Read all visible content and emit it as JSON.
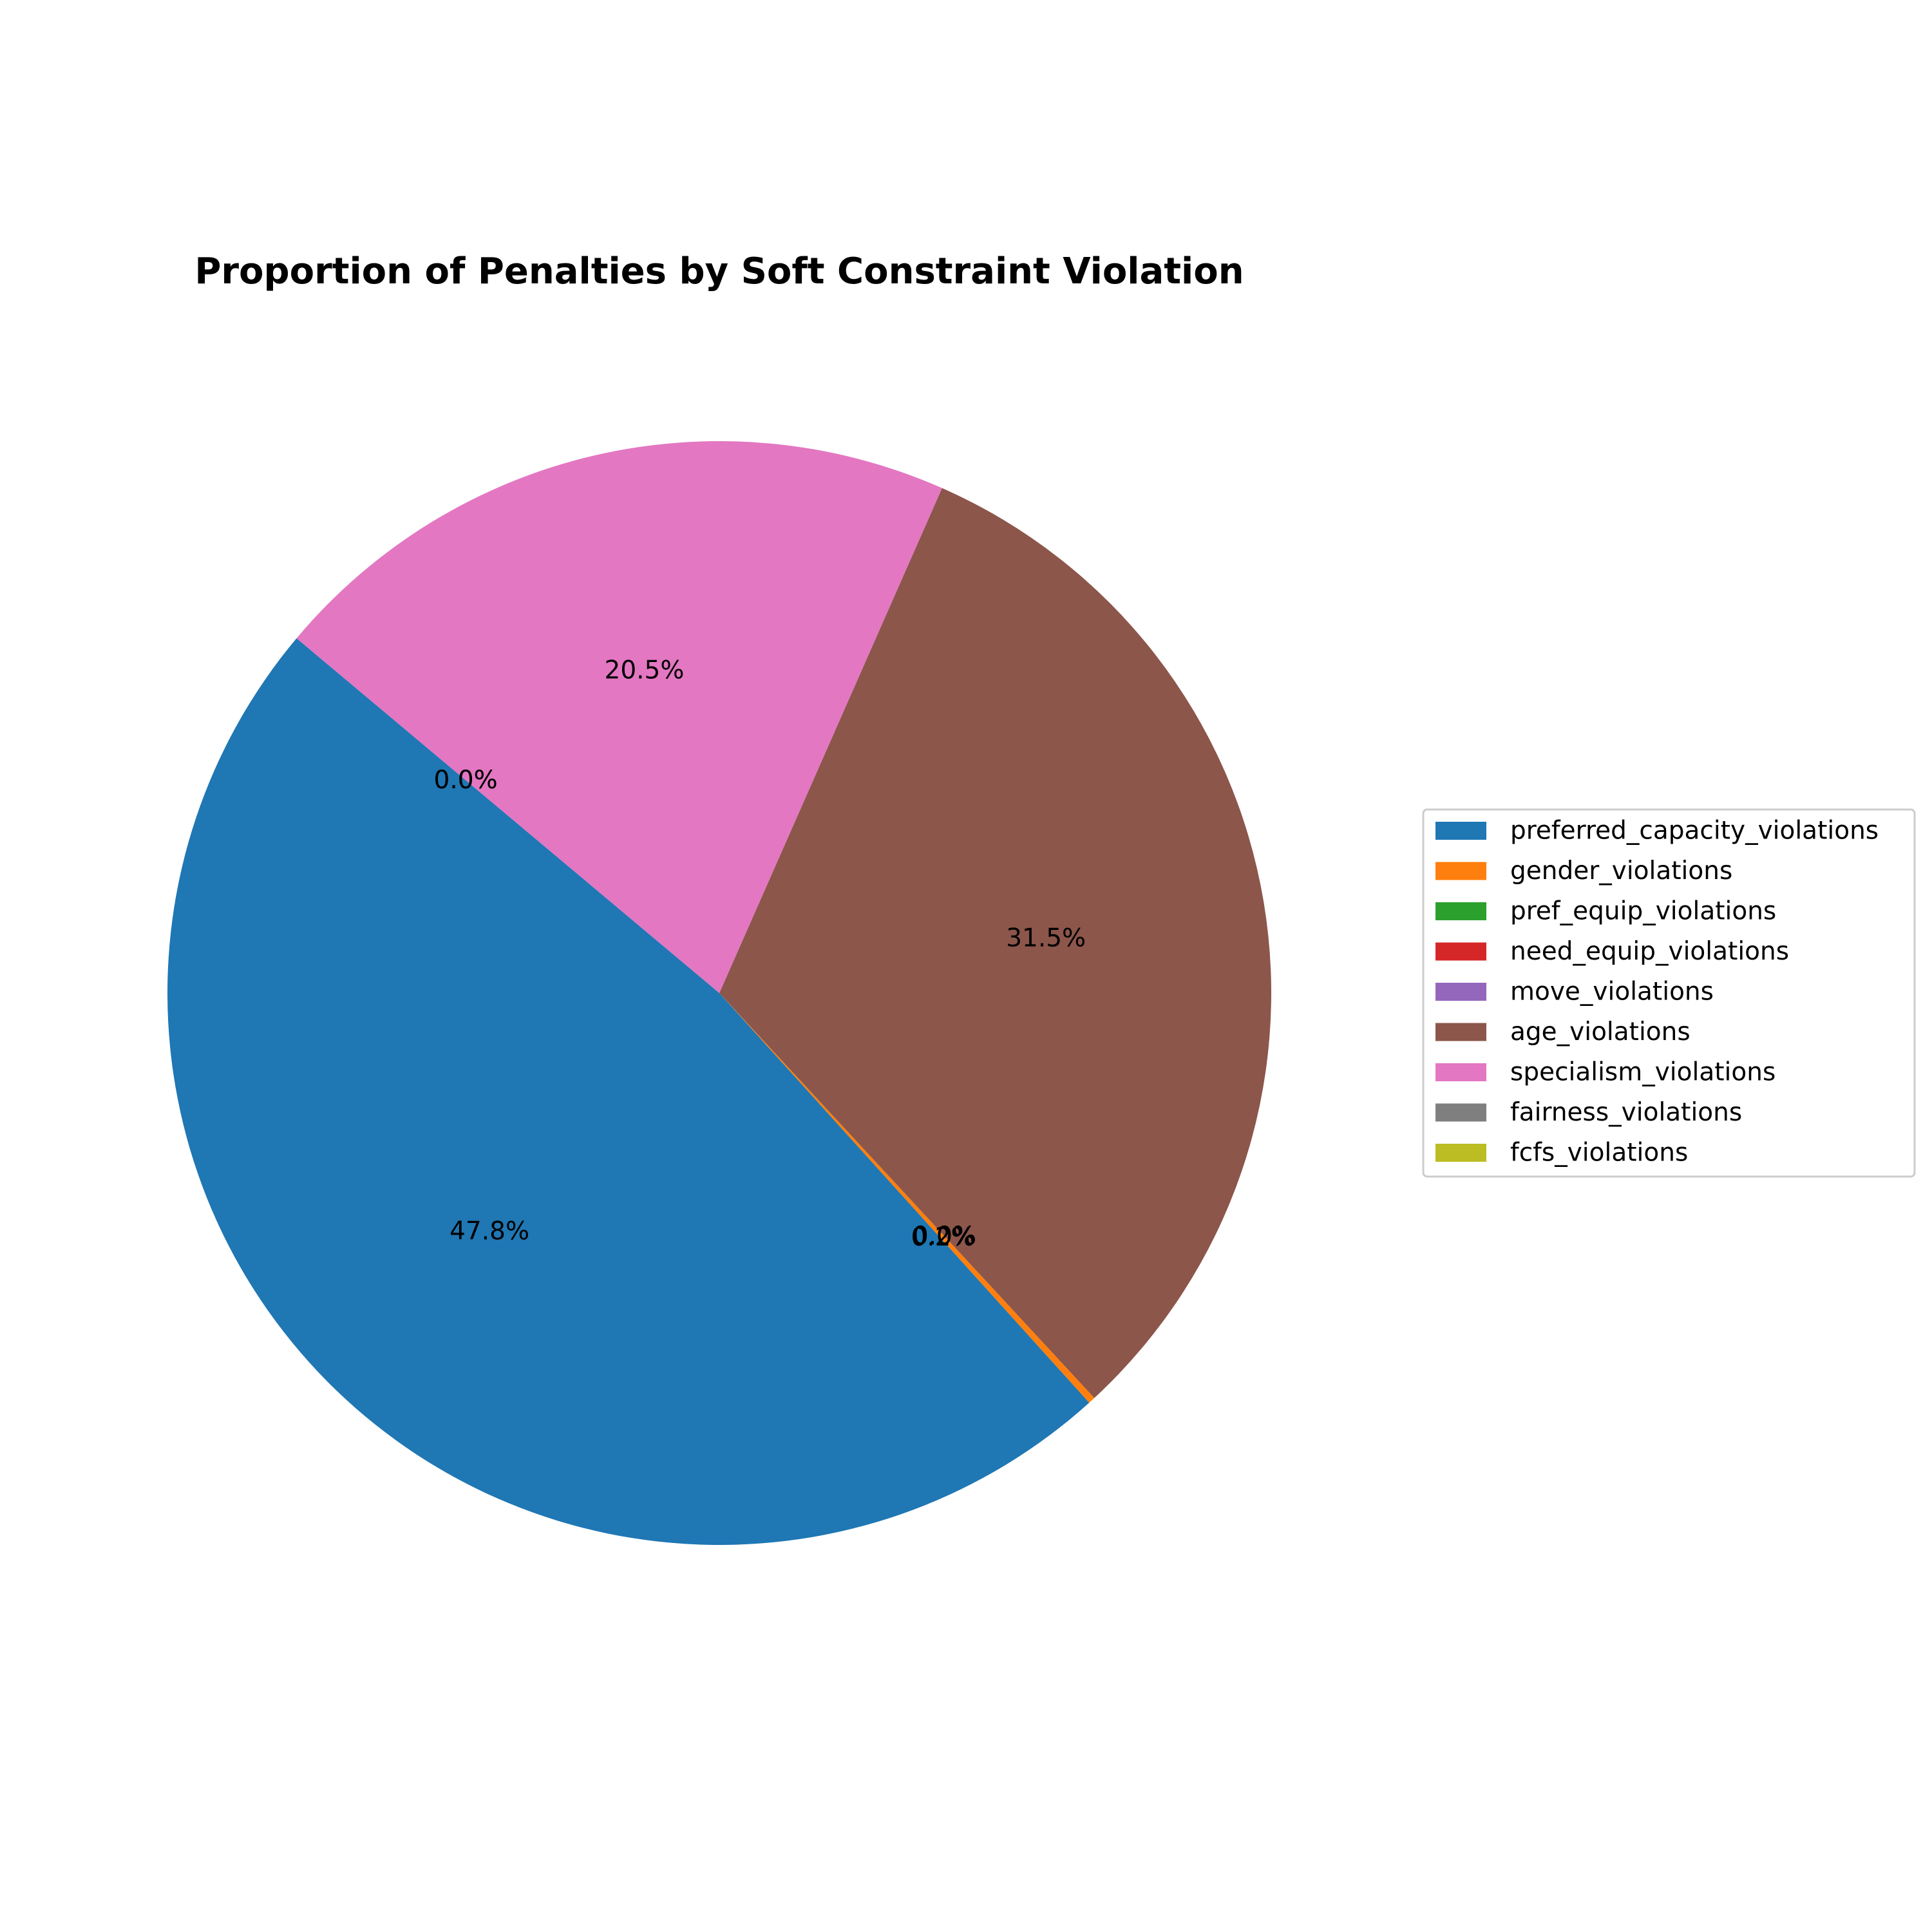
{
  "chart_data": {
    "type": "pie",
    "title": "Proportion of Penalties by Soft Constraint Violation",
    "start_angle_deg": 140,
    "direction": "counterclockwise",
    "slices": [
      {
        "label": "preferred_capacity_violations",
        "value": 47.8,
        "pct_label": "47.8%",
        "color": "#1f77b4"
      },
      {
        "label": "gender_violations",
        "value": 0.2,
        "pct_label": "0.2%",
        "color": "#ff7f0e"
      },
      {
        "label": "pref_equip_violations",
        "value": 0.0,
        "pct_label": "0.0%",
        "color": "#2ca02c"
      },
      {
        "label": "need_equip_violations",
        "value": 0.0,
        "pct_label": "0.0%",
        "color": "#d62728"
      },
      {
        "label": "move_violations",
        "value": 0.0,
        "pct_label": "0.0%",
        "color": "#9467bd"
      },
      {
        "label": "age_violations",
        "value": 31.5,
        "pct_label": "31.5%",
        "color": "#8c564b"
      },
      {
        "label": "specialism_violations",
        "value": 20.5,
        "pct_label": "20.5%",
        "color": "#e377c2"
      },
      {
        "label": "fairness_violations",
        "value": 0.0,
        "pct_label": "0.0%",
        "color": "#7f7f7f"
      },
      {
        "label": "fcfs_violations",
        "value": 0.0,
        "pct_label": "0.0%",
        "color": "#bcbd22"
      }
    ],
    "legend_position": "center-right"
  }
}
